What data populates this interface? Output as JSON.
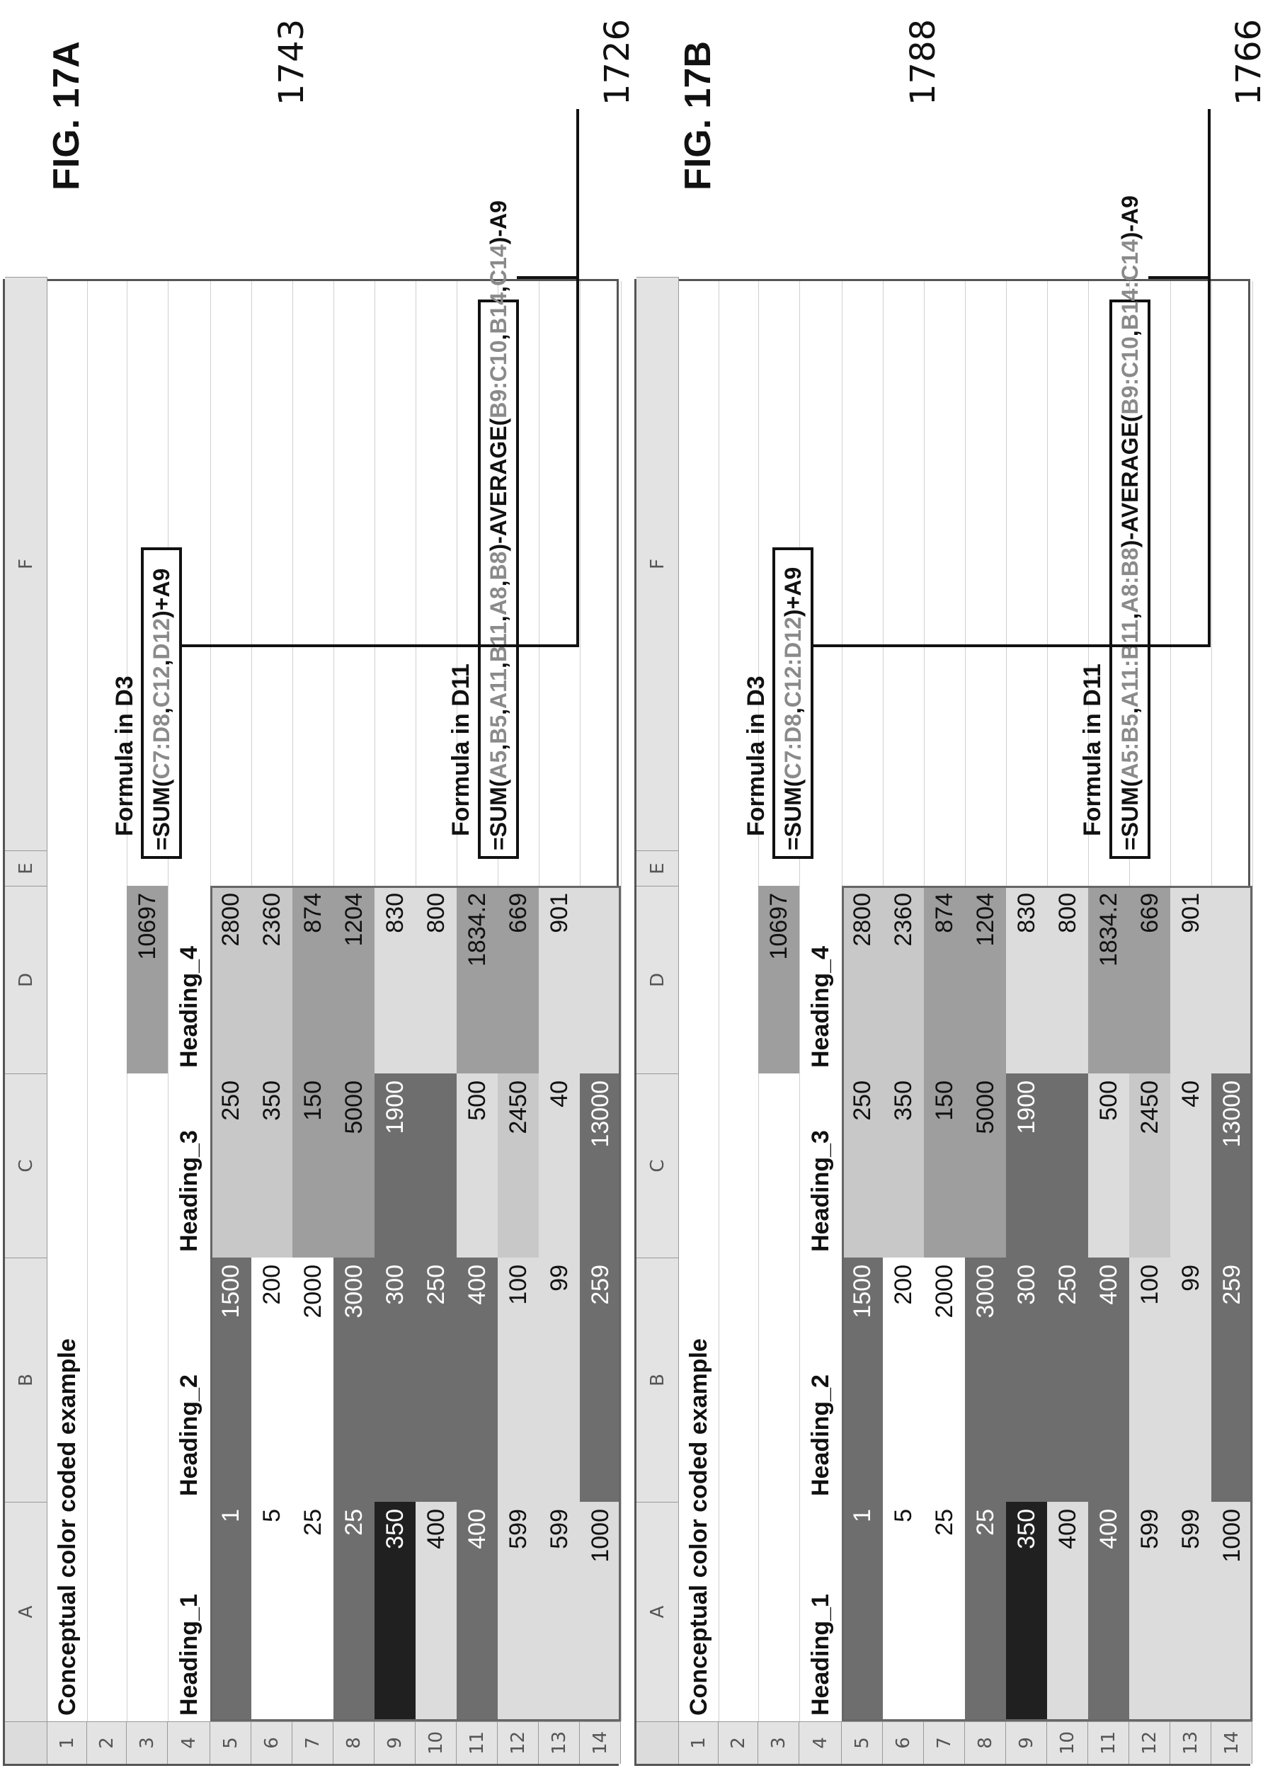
{
  "figures": [
    {
      "id": "a",
      "fig_label": "FIG. 17A",
      "ref_number_top": "1726",
      "ref_number_bottom": "1743",
      "title": "Conceptual color coded example",
      "column_headers": [
        "A",
        "B",
        "C",
        "D",
        "E",
        "F"
      ],
      "row_headers": [
        "1",
        "2",
        "3",
        "4",
        "5",
        "6",
        "7",
        "8",
        "9",
        "10",
        "11",
        "12",
        "13",
        "14"
      ],
      "d3_value": "10697",
      "headings": [
        "Heading_1",
        "Heading_2",
        "Heading_3",
        "Heading_4"
      ],
      "rows": [
        [
          "1",
          "1500",
          "250",
          "2800"
        ],
        [
          "5",
          "200",
          "350",
          "2360"
        ],
        [
          "25",
          "2000",
          "150",
          "874"
        ],
        [
          "25",
          "3000",
          "5000",
          "1204"
        ],
        [
          "350",
          "300",
          "1900",
          "830"
        ],
        [
          "400",
          "250",
          "",
          "800"
        ],
        [
          "400",
          "400",
          "500",
          "1834.2"
        ],
        [
          "599",
          "100",
          "2450",
          "669"
        ],
        [
          "599",
          "99",
          "40",
          "901"
        ],
        [
          "1000",
          "259",
          "13000",
          ""
        ]
      ],
      "formula1_label": "Formula in D3",
      "formula1": [
        {
          "t": "=SUM(",
          "k": "op"
        },
        {
          "t": "C7:D8",
          "k": "ref"
        },
        {
          "t": ",",
          "k": "op"
        },
        {
          "t": "C12",
          "k": "ref"
        },
        {
          "t": ",",
          "k": "op"
        },
        {
          "t": "D12",
          "k": "ref"
        },
        {
          "t": ")+A9",
          "k": "op"
        }
      ],
      "formula2_label": "Formula in D11",
      "formula2": [
        {
          "t": "=SUM(",
          "k": "op"
        },
        {
          "t": "A5",
          "k": "ref"
        },
        {
          "t": ",",
          "k": "op"
        },
        {
          "t": "B5",
          "k": "ref"
        },
        {
          "t": ",",
          "k": "op"
        },
        {
          "t": "A11",
          "k": "ref"
        },
        {
          "t": ",",
          "k": "op"
        },
        {
          "t": "B11",
          "k": "ref"
        },
        {
          "t": ",",
          "k": "op"
        },
        {
          "t": "A8",
          "k": "ref"
        },
        {
          "t": ",",
          "k": "op"
        },
        {
          "t": "B8",
          "k": "ref"
        },
        {
          "t": ")-AVERAGE(",
          "k": "op"
        },
        {
          "t": "B9:C10",
          "k": "ref"
        },
        {
          "t": ",",
          "k": "op"
        },
        {
          "t": "B14",
          "k": "ref"
        },
        {
          "t": ",",
          "k": "op"
        },
        {
          "t": "C14",
          "k": "ref"
        },
        {
          "t": ")-A9",
          "k": "op"
        }
      ]
    },
    {
      "id": "b",
      "fig_label": "FIG. 17B",
      "ref_number_top": "1766",
      "ref_number_bottom": "1788",
      "title": "Conceptual color coded example",
      "column_headers": [
        "A",
        "B",
        "C",
        "D",
        "E",
        "F"
      ],
      "row_headers": [
        "1",
        "2",
        "3",
        "4",
        "5",
        "6",
        "7",
        "8",
        "9",
        "10",
        "11",
        "12",
        "13",
        "14"
      ],
      "d3_value": "10697",
      "headings": [
        "Heading_1",
        "Heading_2",
        "Heading_3",
        "Heading_4"
      ],
      "rows": [
        [
          "1",
          "1500",
          "250",
          "2800"
        ],
        [
          "5",
          "200",
          "350",
          "2360"
        ],
        [
          "25",
          "2000",
          "150",
          "874"
        ],
        [
          "25",
          "3000",
          "5000",
          "1204"
        ],
        [
          "350",
          "300",
          "1900",
          "830"
        ],
        [
          "400",
          "250",
          "",
          "800"
        ],
        [
          "400",
          "400",
          "500",
          "1834.2"
        ],
        [
          "599",
          "100",
          "2450",
          "669"
        ],
        [
          "599",
          "99",
          "40",
          "901"
        ],
        [
          "1000",
          "259",
          "13000",
          ""
        ]
      ],
      "formula1_label": "Formula in D3",
      "formula1": [
        {
          "t": "=SUM(",
          "k": "op"
        },
        {
          "t": "C7:D8",
          "k": "ref"
        },
        {
          "t": ",",
          "k": "op"
        },
        {
          "t": "C12:D12",
          "k": "ref"
        },
        {
          "t": ")+A9",
          "k": "op"
        }
      ],
      "formula2_label": "Formula in D11",
      "formula2": [
        {
          "t": "=SUM(",
          "k": "op"
        },
        {
          "t": "A5:B5",
          "k": "ref"
        },
        {
          "t": ",",
          "k": "op"
        },
        {
          "t": "A11:B11",
          "k": "ref"
        },
        {
          "t": ",",
          "k": "op"
        },
        {
          "t": "A8:B8",
          "k": "ref"
        },
        {
          "t": ")-AVERAGE(",
          "k": "op"
        },
        {
          "t": "B9:C10",
          "k": "ref"
        },
        {
          "t": ",",
          "k": "op"
        },
        {
          "t": "B14:C14",
          "k": "ref"
        },
        {
          "t": ")-A9",
          "k": "op"
        }
      ]
    }
  ],
  "colors": {
    "shade_black": "#202020",
    "shade_dark": "#6e6e6e",
    "shade_mid": "#9e9e9e",
    "shade_light": "#c8c8c8",
    "shade_pale": "#dcdcdc",
    "shade_white": "#ffffff"
  }
}
